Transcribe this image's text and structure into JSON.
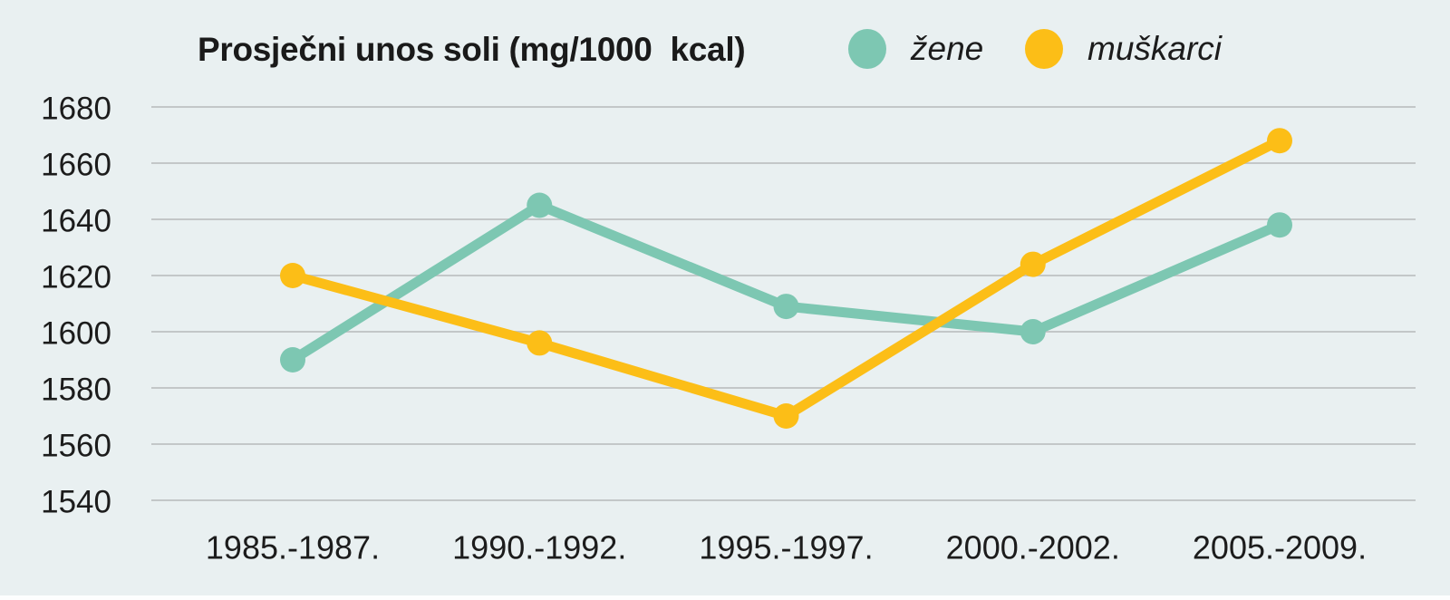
{
  "chart_data": {
    "type": "line",
    "title": "Prosječni unos soli (mg/1000  kcal)",
    "categories": [
      "1985.-1987.",
      "1990.-1992.",
      "1995.-1997.",
      "2000.-2002.",
      "2005.-2009."
    ],
    "series": [
      {
        "name": "žene",
        "color": "#7dc7b2",
        "values": [
          1590,
          1645,
          1609,
          1600,
          1638
        ]
      },
      {
        "name": "muškarci",
        "color": "#fcbe17",
        "values": [
          1620,
          1596,
          1570,
          1624,
          1668
        ]
      }
    ],
    "ylim": [
      1540,
      1680
    ],
    "ytick_step": 20,
    "yticks": [
      1680,
      1660,
      1640,
      1620,
      1600,
      1580,
      1560,
      1540
    ],
    "grid": true,
    "legend_position": "top",
    "colors": {
      "background": "#e9f0f1",
      "gridline": "#c3c7c8",
      "text": "#1c1c1c"
    }
  }
}
